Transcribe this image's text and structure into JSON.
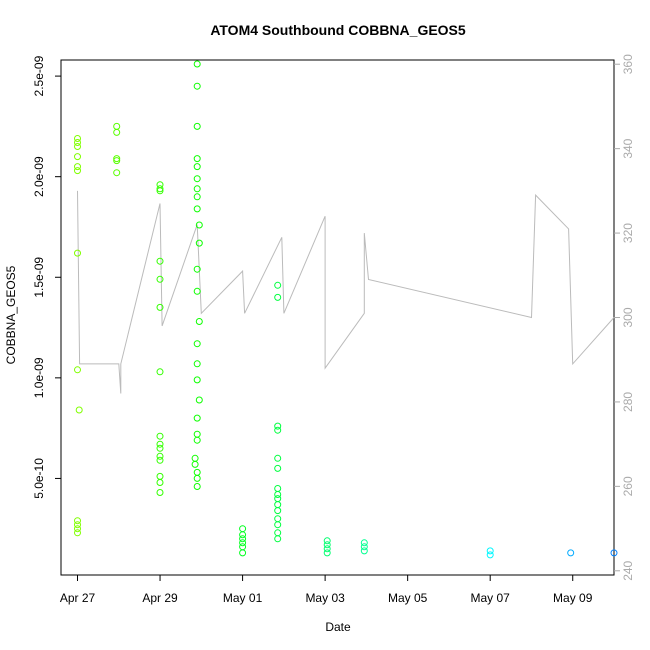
{
  "chart_data": {
    "type": "scatter",
    "title": "ATOM4 Southbound COBBNA_GEOS5",
    "xlabel": "Date",
    "ylabel": "COBBNA_GEOS5",
    "x_ticks": [
      "Apr 27",
      "Apr 29",
      "May 01",
      "May 03",
      "May 05",
      "May 07",
      "May 09"
    ],
    "y_ticks": [
      "5.0e-10",
      "1.0e-09",
      "1.5e-09",
      "2.0e-09",
      "2.5e-09"
    ],
    "y2_ticks": [
      "240",
      "260",
      "280",
      "300",
      "320",
      "340",
      "360"
    ],
    "xlim_days": [
      -0.4,
      13.0
    ],
    "ylim": [
      2e-11,
      2.58e-09
    ],
    "y2lim": [
      239,
      361
    ],
    "x_origin": "Apr 27",
    "grid": false,
    "series": [
      {
        "values_desc": "primary scatter, x in days from Apr 27, y = COBBNA_GEOS5",
        "points": [
          [
            0.0,
            2.19e-09
          ],
          [
            0.0,
            2.17e-09
          ],
          [
            0.0,
            2.15e-09
          ],
          [
            0.0,
            2.1e-09
          ],
          [
            0.0,
            2.05e-09
          ],
          [
            0.0,
            2.03e-09
          ],
          [
            0.0,
            1.62e-09
          ],
          [
            0.0,
            1.04e-09
          ],
          [
            0.04,
            8.4e-10
          ],
          [
            0.0,
            2.9e-10
          ],
          [
            0.0,
            2.7e-10
          ],
          [
            0.0,
            2.5e-10
          ],
          [
            0.0,
            2.3e-10
          ],
          [
            0.95,
            2.25e-09
          ],
          [
            0.95,
            2.22e-09
          ],
          [
            0.95,
            2.09e-09
          ],
          [
            0.95,
            2.08e-09
          ],
          [
            0.95,
            2.02e-09
          ],
          [
            2.0,
            1.96e-09
          ],
          [
            2.0,
            1.94e-09
          ],
          [
            2.0,
            1.93e-09
          ],
          [
            2.0,
            1.58e-09
          ],
          [
            2.0,
            1.49e-09
          ],
          [
            2.0,
            1.35e-09
          ],
          [
            2.0,
            1.03e-09
          ],
          [
            2.0,
            7.1e-10
          ],
          [
            2.0,
            6.7e-10
          ],
          [
            2.0,
            6.5e-10
          ],
          [
            2.0,
            6.1e-10
          ],
          [
            2.0,
            5.9e-10
          ],
          [
            2.0,
            5.1e-10
          ],
          [
            2.0,
            4.8e-10
          ],
          [
            2.0,
            4.3e-10
          ],
          [
            2.9,
            2.56e-09
          ],
          [
            2.9,
            2.45e-09
          ],
          [
            2.9,
            2.25e-09
          ],
          [
            2.9,
            2.09e-09
          ],
          [
            2.9,
            2.05e-09
          ],
          [
            2.9,
            1.99e-09
          ],
          [
            2.9,
            1.94e-09
          ],
          [
            2.9,
            1.9e-09
          ],
          [
            2.9,
            1.84e-09
          ],
          [
            2.95,
            1.76e-09
          ],
          [
            2.95,
            1.67e-09
          ],
          [
            2.9,
            1.54e-09
          ],
          [
            2.9,
            1.43e-09
          ],
          [
            2.95,
            1.28e-09
          ],
          [
            2.9,
            1.17e-09
          ],
          [
            2.9,
            1.07e-09
          ],
          [
            2.9,
            9.9e-10
          ],
          [
            2.95,
            8.9e-10
          ],
          [
            2.9,
            8e-10
          ],
          [
            2.9,
            7.2e-10
          ],
          [
            2.9,
            6.9e-10
          ],
          [
            2.85,
            6e-10
          ],
          [
            2.85,
            5.7e-10
          ],
          [
            2.9,
            5.3e-10
          ],
          [
            2.9,
            5e-10
          ],
          [
            2.9,
            4.6e-10
          ],
          [
            4.0,
            2.5e-10
          ],
          [
            4.0,
            2.2e-10
          ],
          [
            4.0,
            2e-10
          ],
          [
            4.0,
            1.8e-10
          ],
          [
            4.0,
            1.6e-10
          ],
          [
            4.0,
            1.3e-10
          ],
          [
            4.85,
            1.46e-09
          ],
          [
            4.85,
            1.4e-09
          ],
          [
            4.85,
            7.6e-10
          ],
          [
            4.85,
            7.4e-10
          ],
          [
            4.85,
            6e-10
          ],
          [
            4.85,
            5.5e-10
          ],
          [
            4.85,
            4.5e-10
          ],
          [
            4.85,
            4.2e-10
          ],
          [
            4.85,
            4e-10
          ],
          [
            4.85,
            3.7e-10
          ],
          [
            4.85,
            3.4e-10
          ],
          [
            4.85,
            3e-10
          ],
          [
            4.85,
            2.7e-10
          ],
          [
            4.85,
            2.3e-10
          ],
          [
            4.85,
            2e-10
          ],
          [
            6.05,
            1.9e-10
          ],
          [
            6.05,
            1.7e-10
          ],
          [
            6.05,
            1.5e-10
          ],
          [
            6.05,
            1.3e-10
          ],
          [
            6.95,
            1.8e-10
          ],
          [
            6.95,
            1.6e-10
          ],
          [
            6.95,
            1.4e-10
          ],
          [
            10.0,
            1.4e-10
          ],
          [
            10.0,
            1.2e-10
          ],
          [
            11.95,
            1.3e-10
          ],
          [
            13.0,
            1.3e-10
          ]
        ]
      }
    ],
    "secondary_line_desc": "grey line on right axis (240-360), approximate trace",
    "secondary_line": [
      [
        0.0,
        330
      ],
      [
        0.05,
        289
      ],
      [
        1.0,
        289
      ],
      [
        1.05,
        282
      ],
      [
        1.05,
        289
      ],
      [
        2.0,
        327
      ],
      [
        2.05,
        298
      ],
      [
        2.9,
        322
      ],
      [
        3.0,
        301
      ],
      [
        4.0,
        311
      ],
      [
        4.05,
        301
      ],
      [
        4.95,
        319
      ],
      [
        5.0,
        301
      ],
      [
        6.0,
        324
      ],
      [
        6.0,
        288
      ],
      [
        6.95,
        301
      ],
      [
        6.95,
        320
      ],
      [
        7.05,
        309
      ],
      [
        11.0,
        300
      ],
      [
        11.1,
        329
      ],
      [
        11.9,
        321
      ],
      [
        12.0,
        289
      ],
      [
        13.0,
        300
      ]
    ]
  }
}
